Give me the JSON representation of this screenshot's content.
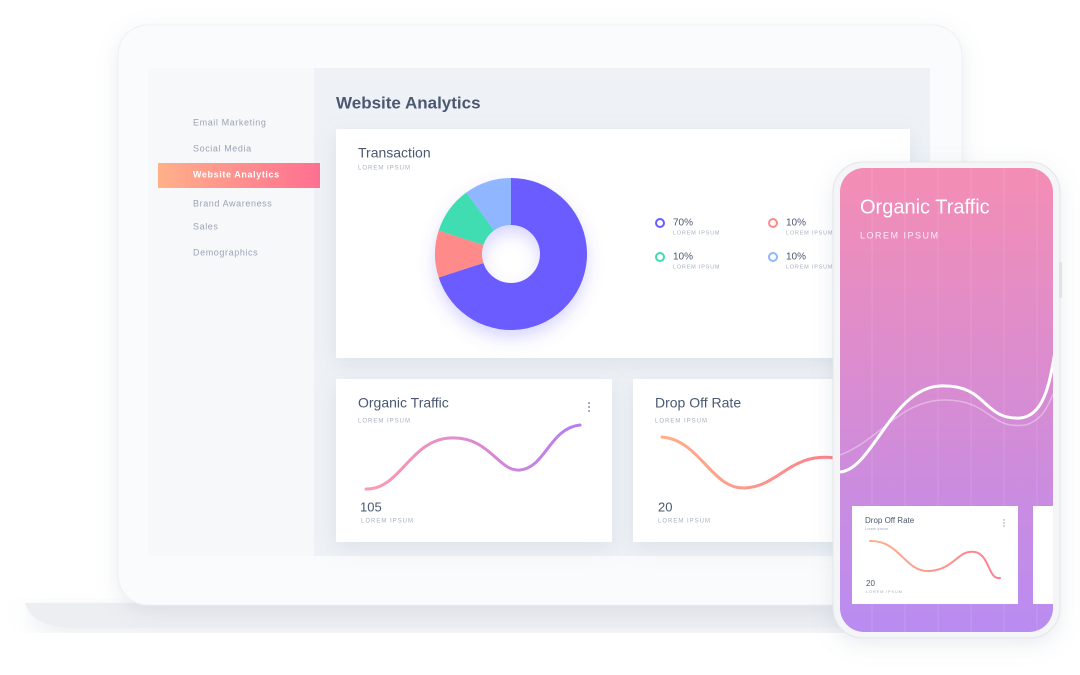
{
  "sidebar": {
    "items": [
      "Email Marketing",
      "Social Media",
      "Website Analytics",
      "Brand Awareness",
      "Sales",
      "Demographics"
    ],
    "active": 2
  },
  "main": {
    "title": "Website Analytics",
    "transaction": {
      "title": "Transaction",
      "subtitle": "LOREM IPSUM",
      "segments": [
        {
          "value": 70,
          "label": "70%",
          "caption": "LOREM IPSUM",
          "color": "#6b5cff"
        },
        {
          "value": 10,
          "label": "10%",
          "caption": "LOREM IPSUM",
          "color": "#ff8a8a"
        },
        {
          "value": 10,
          "label": "10%",
          "caption": "LOREM IPSUM",
          "color": "#3fdcb2"
        },
        {
          "value": 10,
          "label": "10%",
          "caption": "LOREM IPSUM",
          "color": "#8fb6ff"
        }
      ]
    },
    "organic_traffic": {
      "title": "Organic Traffic",
      "subtitle": "LOREM IPSUM",
      "value": 105,
      "caption": "LOREM IPSUM"
    },
    "drop_off_rate": {
      "title": "Drop Off Rate",
      "subtitle": "LOREM IPSUM",
      "value": 20,
      "caption": "LOREM IPSUM"
    }
  },
  "phone": {
    "title": "Organic Traffic",
    "subtitle": "LOREM IPSUM",
    "card": {
      "title": "Drop Off Rate",
      "subtitle": "Lorem ipsum",
      "value": 20,
      "caption": "LOREM IPSUM"
    }
  }
}
